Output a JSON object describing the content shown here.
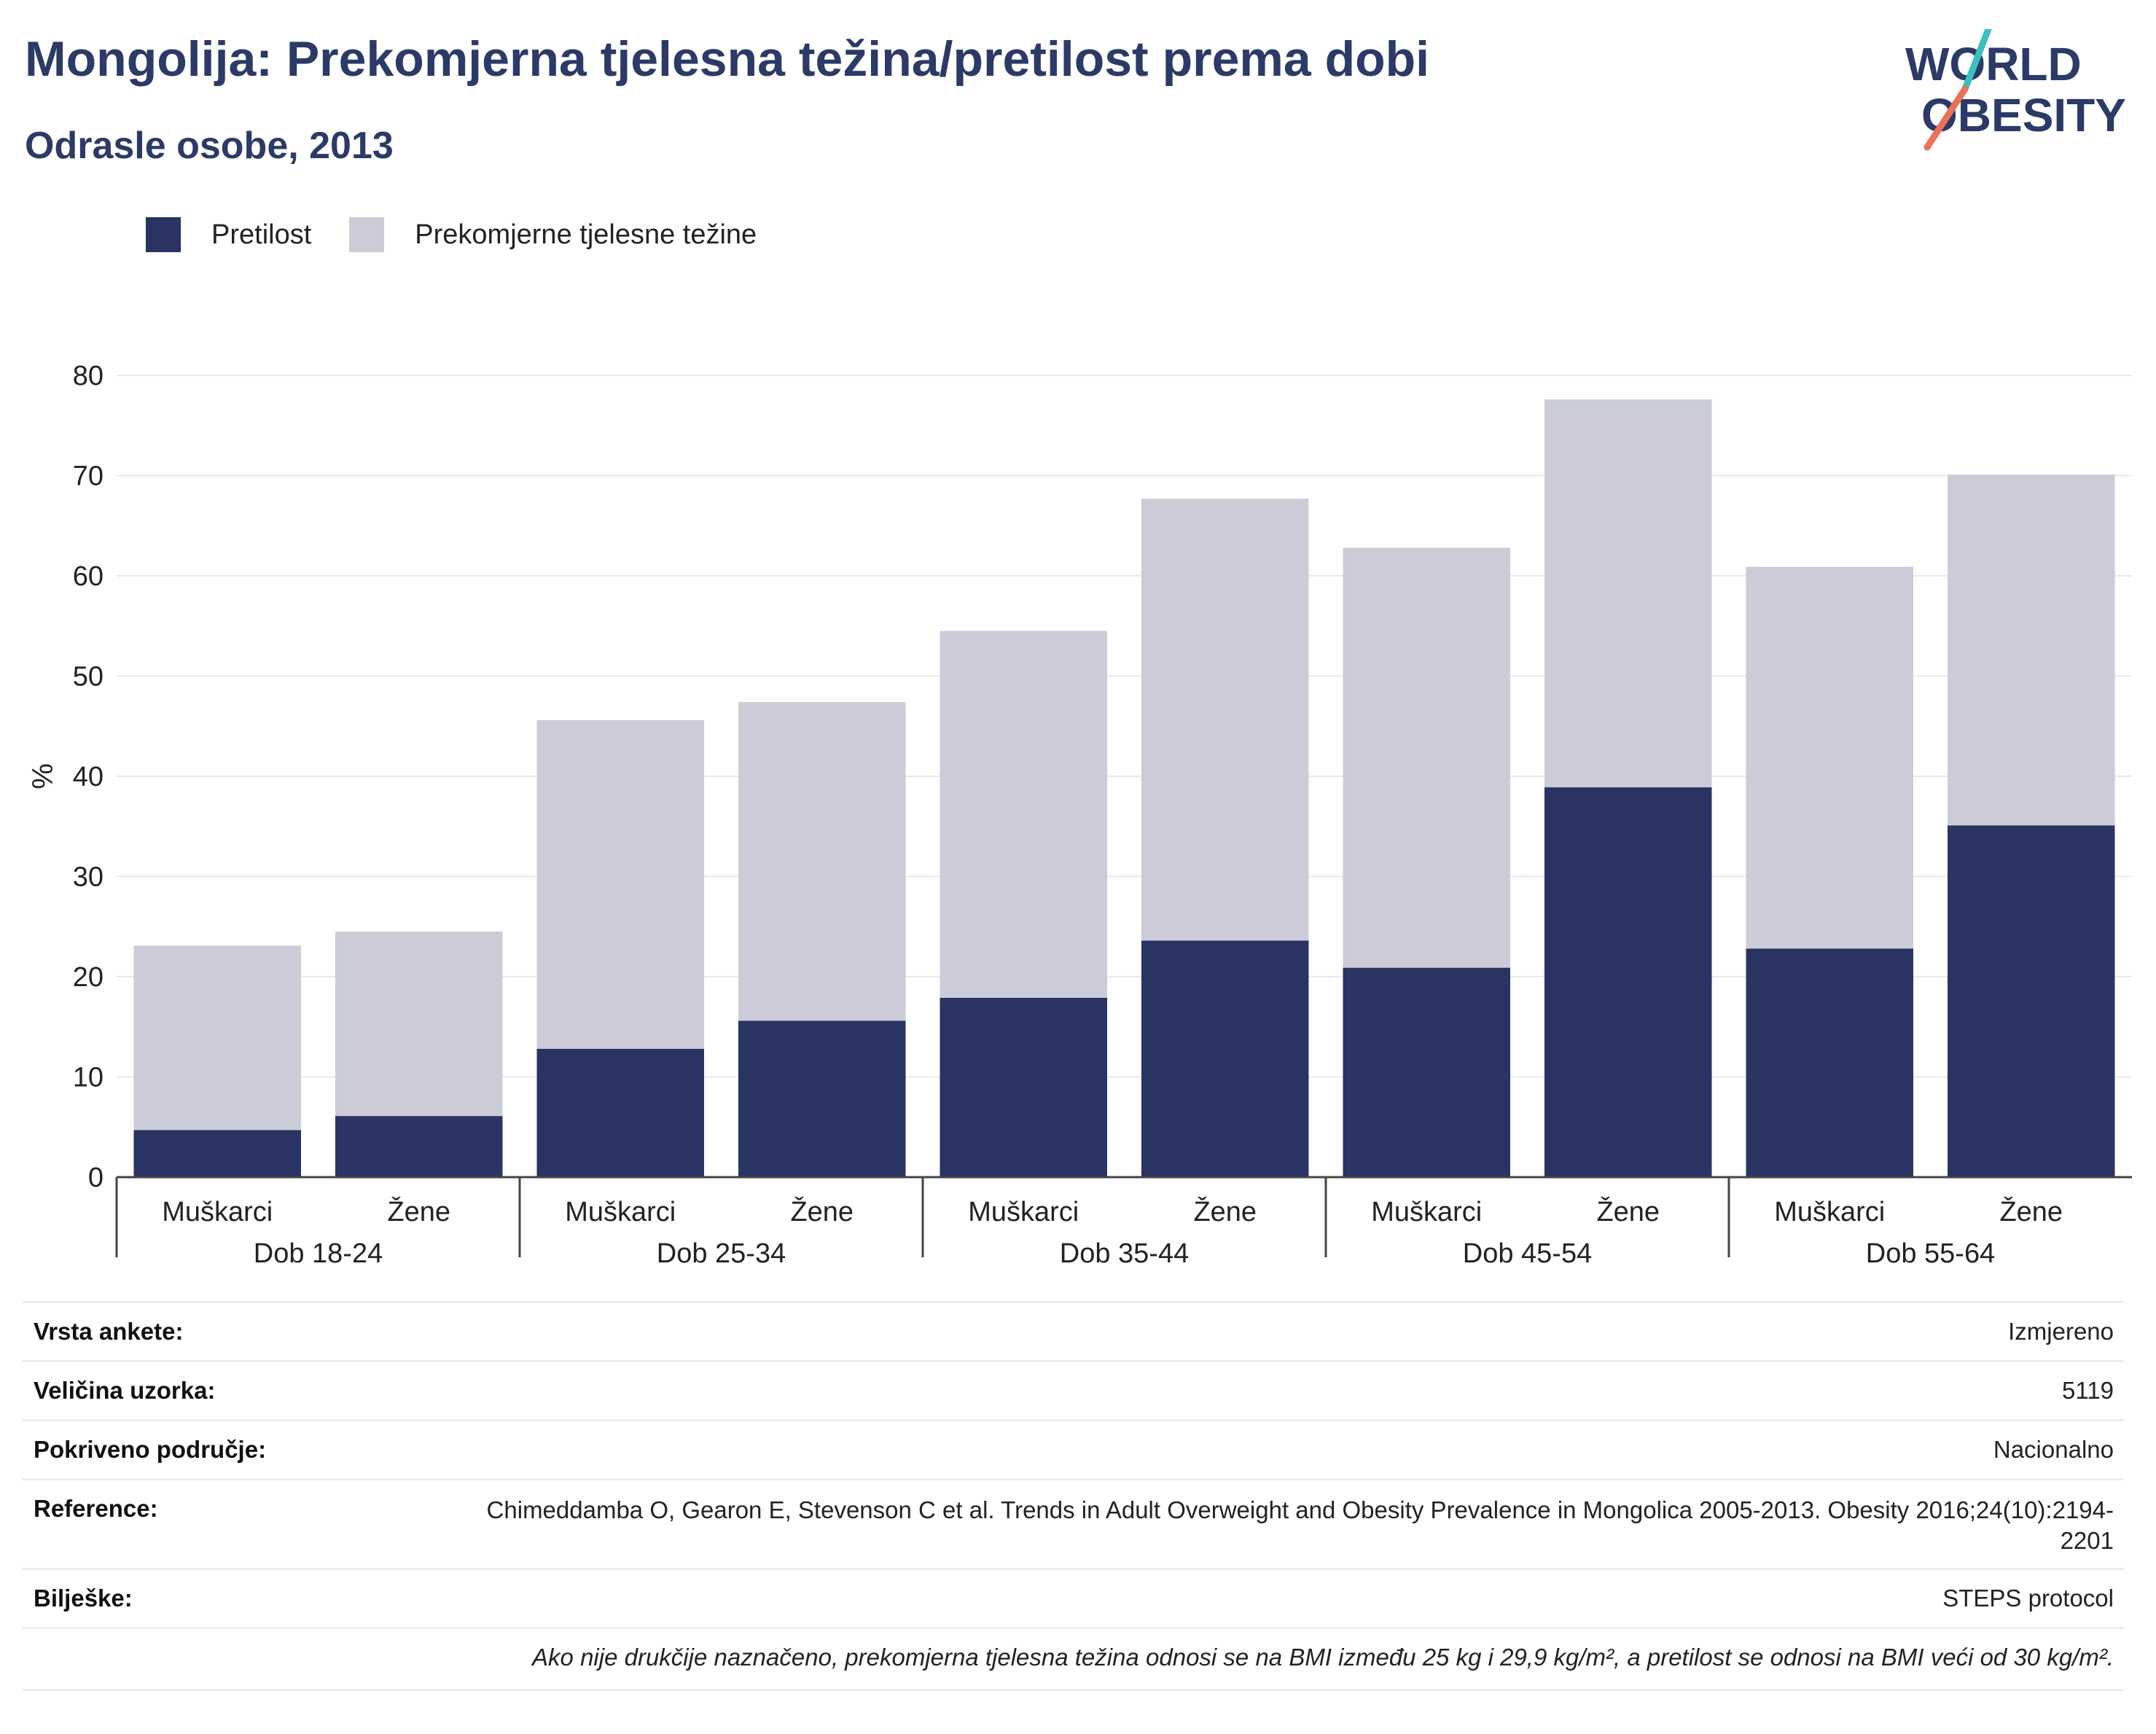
{
  "header": {
    "title": "Mongolija: Prekomjerna tjelesna težina/pretilost prema dobi",
    "subtitle": "Odrasle osobe, 2013",
    "logo_line1": "WORLD",
    "logo_line2": "OBESITY"
  },
  "legend": {
    "items": [
      {
        "label": "Pretilost",
        "color": "#293462"
      },
      {
        "label": "Prekomjerne tjelesne težine",
        "color": "#cbccd8"
      }
    ]
  },
  "chart_data": {
    "type": "bar",
    "stacked": true,
    "ylabel": "%",
    "ylim": [
      0,
      80
    ],
    "yticks": [
      0,
      10,
      20,
      30,
      40,
      50,
      60,
      70,
      80
    ],
    "grid": true,
    "legend_position": "top-left",
    "groups": [
      "Dob 18-24",
      "Dob 25-34",
      "Dob 35-44",
      "Dob 45-54",
      "Dob 55-64"
    ],
    "subcategories": [
      "Muškarci",
      "Žene"
    ],
    "series": [
      {
        "name": "Pretilost",
        "color": "#293462",
        "values": [
          4.7,
          6.1,
          12.8,
          15.6,
          17.9,
          23.6,
          20.9,
          38.9,
          22.8,
          35.1
        ]
      },
      {
        "name": "Prekomjerne tjelesne težine",
        "color": "#cbccd8",
        "values": [
          18.4,
          18.4,
          32.8,
          31.8,
          36.6,
          44.1,
          41.9,
          38.7,
          38.1,
          35.0
        ]
      }
    ]
  },
  "info_table": {
    "rows": [
      {
        "key": "Vrsta ankete:",
        "value": "Izmjereno"
      },
      {
        "key": "Veličina uzorka:",
        "value": "5119"
      },
      {
        "key": "Pokriveno područje:",
        "value": "Nacionalno"
      },
      {
        "key": "Reference:",
        "value": "Chimeddamba O, Gearon E, Stevenson C et al. Trends in Adult Overweight and Obesity Prevalence in Mongolica 2005-2013. Obesity 2016;24(10):2194-2201"
      },
      {
        "key": "Bilješke:",
        "value": "STEPS protocol"
      }
    ],
    "footnote": "Ako nije drukčije naznačeno, prekomjerna tjelesna težina odnosi se na BMI između 25 kg i 29,9 kg/m², a pretilost se odnosi na BMI veći od 30 kg/m²."
  }
}
